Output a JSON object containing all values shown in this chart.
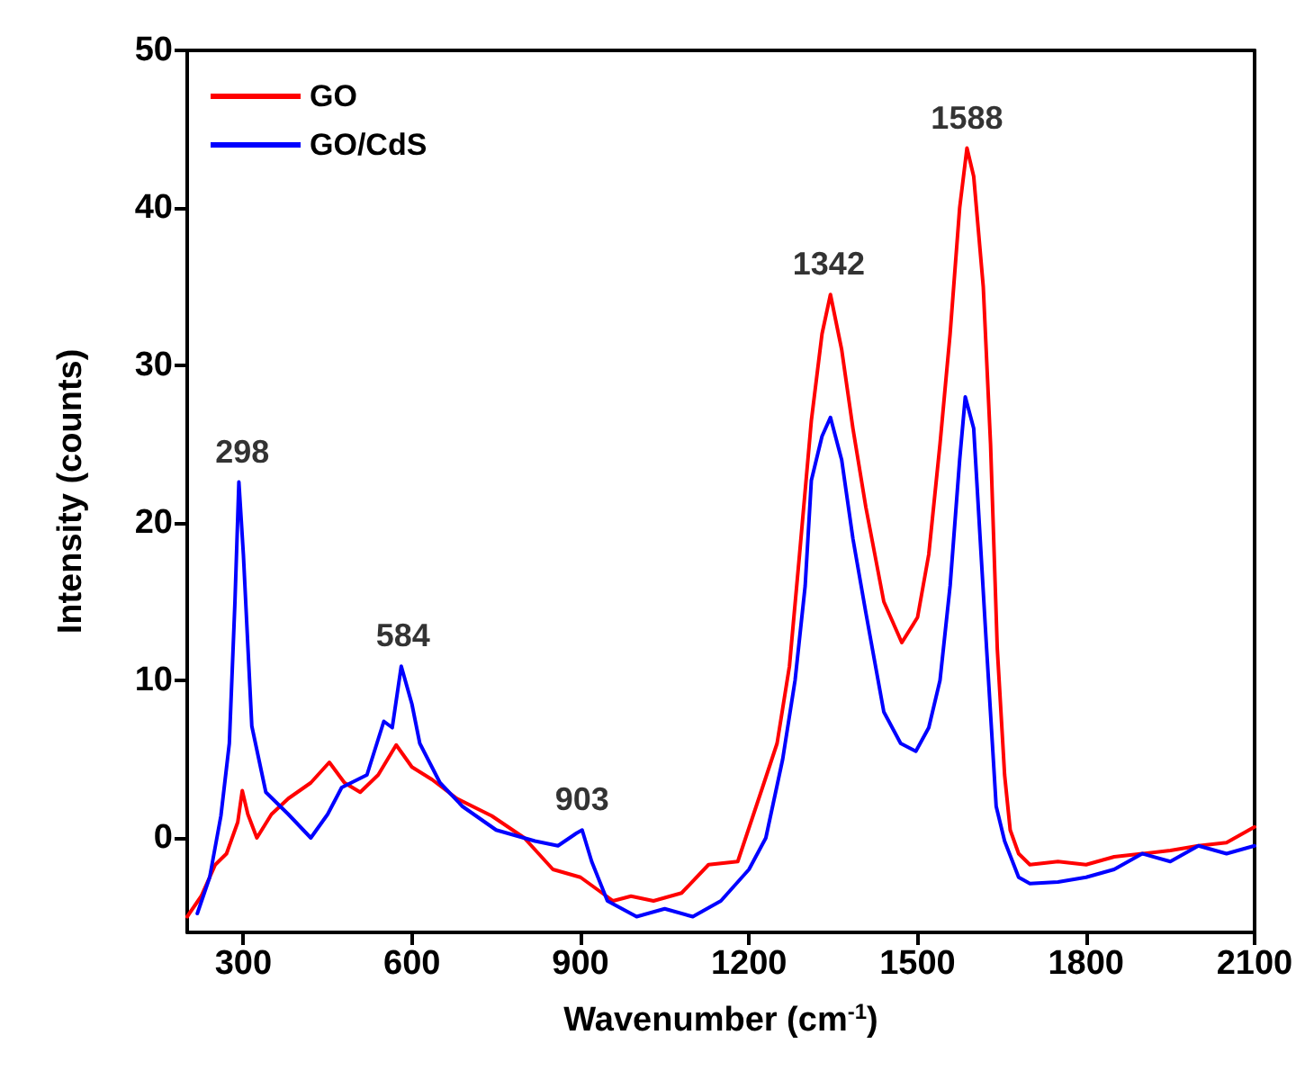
{
  "chart_data": {
    "type": "line",
    "xlabel": "Wavenumber (cm$^{-1}$)",
    "ylabel": "Intensity (counts)",
    "xlim": [
      200,
      2100
    ],
    "xticks": [
      300,
      600,
      900,
      1200,
      1500,
      1800,
      2100
    ],
    "ylim": [
      -6,
      50
    ],
    "yticks": [
      0,
      10,
      20,
      30,
      40,
      50
    ],
    "grid": false,
    "legend": "top left",
    "marker": "none",
    "line_style": "solid",
    "series": [
      {
        "name": "GO",
        "color": "#ff0000",
        "x": [
          200,
          225,
          250,
          270,
          290,
          298,
          308,
          324,
          350,
          380,
          420,
          453,
          480,
          508,
          540,
          572,
          600,
          636,
          680,
          742,
          800,
          851,
          900,
          958,
          990,
          1030,
          1080,
          1128,
          1180,
          1224,
          1250,
          1272,
          1290,
          1311,
          1330,
          1345,
          1365,
          1385,
          1408,
          1440,
          1472,
          1500,
          1520,
          1540,
          1558,
          1575,
          1588,
          1600,
          1617,
          1630,
          1642,
          1655,
          1665,
          1680,
          1700,
          1750,
          1800,
          1850,
          1900,
          1950,
          2000,
          2050,
          2100
        ],
        "values": [
          -5,
          -3.7,
          -1.7,
          -1,
          1,
          3,
          1.5,
          0,
          1.5,
          2.5,
          3.5,
          4.8,
          3.5,
          2.9,
          4,
          5.9,
          4.5,
          3.7,
          2.5,
          1.4,
          0,
          -2,
          -2.5,
          -4,
          -3.7,
          -4,
          -3.5,
          -1.7,
          -1.5,
          3.2,
          6,
          10.9,
          18,
          26.5,
          32,
          34.5,
          31,
          26,
          21,
          15,
          12.4,
          14,
          18,
          25,
          32,
          40,
          43.8,
          42,
          35,
          25,
          12,
          4,
          0.5,
          -1,
          -1.7,
          -1.5,
          -1.7,
          -1.2,
          -1,
          -0.8,
          -0.5,
          -0.3,
          0.7
        ]
      },
      {
        "name": "GO/CdS",
        "color": "#0000ff",
        "x": [
          218,
          240,
          260,
          275,
          285,
          292,
          300,
          315,
          340,
          380,
          420,
          450,
          475,
          520,
          550,
          565,
          581,
          600,
          614,
          650,
          690,
          750,
          819,
          860,
          893,
          903,
          920,
          948,
          1000,
          1050,
          1100,
          1150,
          1200,
          1230,
          1260,
          1282,
          1300,
          1311,
          1330,
          1345,
          1365,
          1385,
          1408,
          1440,
          1470,
          1497,
          1520,
          1540,
          1558,
          1575,
          1585,
          1600,
          1623,
          1640,
          1655,
          1680,
          1700,
          1750,
          1800,
          1850,
          1900,
          1950,
          2000,
          2050,
          2100
        ],
        "values": [
          -4.8,
          -2.5,
          1.4,
          6,
          15,
          22.6,
          18,
          7.1,
          2.9,
          1.5,
          0,
          1.5,
          3.2,
          4,
          7.4,
          7,
          10.9,
          8.5,
          6,
          3.5,
          2,
          0.5,
          -0.2,
          -0.5,
          0.3,
          0.5,
          -1.5,
          -4,
          -5,
          -4.5,
          -5,
          -4,
          -2,
          0,
          5,
          10,
          16,
          22.7,
          25.5,
          26.7,
          24,
          19,
          14.3,
          8,
          6,
          5.5,
          7,
          10,
          16,
          24,
          28,
          26,
          12,
          2,
          -0.2,
          -2.5,
          -2.9,
          -2.8,
          -2.5,
          -2,
          -1,
          -1.5,
          -0.5,
          -1,
          -0.5
        ]
      }
    ],
    "annotations": [
      {
        "text": "298",
        "x": 298,
        "y": 22.6
      },
      {
        "text": "584",
        "x": 584,
        "y": 10.9
      },
      {
        "text": "903",
        "x": 903,
        "y": 0.5
      },
      {
        "text": "1342",
        "x": 1342,
        "y": 34.5
      },
      {
        "text": "1588",
        "x": 1588,
        "y": 43.8
      }
    ]
  }
}
